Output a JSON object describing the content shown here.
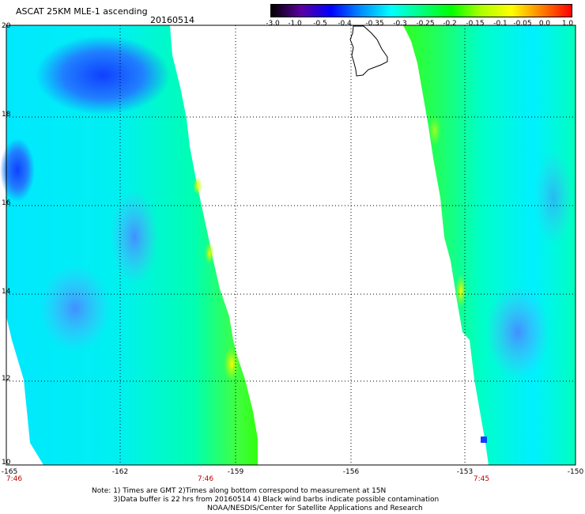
{
  "header": {
    "title": "ASCAT 25KM MLE-1 ascending",
    "date": "20160514"
  },
  "colorbar": {
    "ticks": [
      "-3.0",
      "-1.0",
      "-0.5",
      "-0.4",
      "-0.35",
      "-0.3",
      "-0.25",
      "-0.2",
      "-0.15",
      "-0.1",
      "-0.05",
      "0.0",
      "1.0"
    ],
    "colors": [
      "#000000",
      "#5a00a0",
      "#0000ff",
      "#0090ff",
      "#00ffff",
      "#00ff80",
      "#00ff00",
      "#b0ff00",
      "#ffff00",
      "#ff8000",
      "#ff0000"
    ]
  },
  "map": {
    "lat_labels": [
      "20",
      "18",
      "16",
      "14",
      "12",
      "10"
    ],
    "lon_labels": [
      "-165",
      "-162",
      "-159",
      "-156",
      "-153",
      "-150"
    ],
    "time_labels": [
      "7:46",
      "7:46",
      "7:45"
    ],
    "land_feature": "hawaii-island-outline"
  },
  "notes": {
    "line1": "Note: 1) Times are GMT 2)Times along bottom correspond to measurement at 15N",
    "line2": "3)Data buffer is 22 hrs from 20160514 4) Black wind barbs indicate possible contamination",
    "line3": "NOAA/NESDIS/Center for Satellite Applications and Research"
  }
}
